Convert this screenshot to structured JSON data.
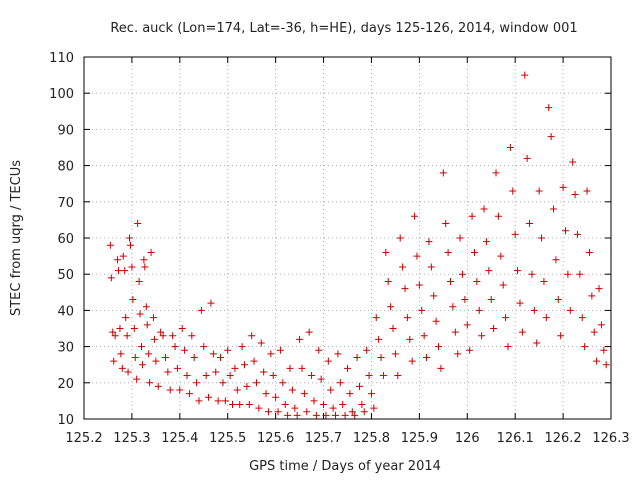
{
  "chart_data": {
    "type": "scatter",
    "title": "Rec. auck (Lon=174, Lat=-36, h=HE), days 125-126, 2014, window 001",
    "xlabel": "GPS time / Days of year 2014",
    "ylabel": "STEC from uqrg / TECUs",
    "xlim": [
      125.2,
      126.3
    ],
    "ylim": [
      10,
      110
    ],
    "xticks": [
      "125.2",
      "125.3",
      "125.4",
      "125.5",
      "125.6",
      "125.7",
      "125.8",
      "125.9",
      "126",
      "126.1",
      "126.2",
      "126.3"
    ],
    "yticks": [
      "10",
      "20",
      "30",
      "40",
      "50",
      "60",
      "70",
      "80",
      "90",
      "100",
      "110"
    ],
    "grid": true,
    "legend": "none",
    "marker": "+",
    "color": "#cc0000",
    "points": [
      [
        125.255,
        58
      ],
      [
        125.257,
        49
      ],
      [
        125.26,
        34
      ],
      [
        125.262,
        26
      ],
      [
        125.265,
        33
      ],
      [
        125.27,
        54
      ],
      [
        125.272,
        51
      ],
      [
        125.275,
        35
      ],
      [
        125.277,
        28
      ],
      [
        125.28,
        24
      ],
      [
        125.282,
        55
      ],
      [
        125.285,
        51
      ],
      [
        125.287,
        38
      ],
      [
        125.29,
        33
      ],
      [
        125.292,
        23
      ],
      [
        125.295,
        60
      ],
      [
        125.297,
        58
      ],
      [
        125.3,
        52
      ],
      [
        125.302,
        43
      ],
      [
        125.305,
        35
      ],
      [
        125.307,
        27
      ],
      [
        125.31,
        21
      ],
      [
        125.312,
        64
      ],
      [
        125.315,
        48
      ],
      [
        125.317,
        39
      ],
      [
        125.32,
        30
      ],
      [
        125.322,
        25
      ],
      [
        125.325,
        54
      ],
      [
        125.327,
        52
      ],
      [
        125.33,
        41
      ],
      [
        125.332,
        36
      ],
      [
        125.335,
        28
      ],
      [
        125.337,
        20
      ],
      [
        125.34,
        56
      ],
      [
        125.345,
        38
      ],
      [
        125.347,
        32
      ],
      [
        125.35,
        26
      ],
      [
        125.355,
        19
      ],
      [
        125.36,
        34
      ],
      [
        125.365,
        33
      ],
      [
        125.37,
        27
      ],
      [
        125.375,
        23
      ],
      [
        125.38,
        18
      ],
      [
        125.385,
        33
      ],
      [
        125.39,
        30
      ],
      [
        125.395,
        24
      ],
      [
        125.4,
        18
      ],
      [
        125.405,
        35
      ],
      [
        125.41,
        29
      ],
      [
        125.415,
        22
      ],
      [
        125.42,
        17
      ],
      [
        125.425,
        33
      ],
      [
        125.43,
        27
      ],
      [
        125.435,
        20
      ],
      [
        125.44,
        15
      ],
      [
        125.445,
        40
      ],
      [
        125.45,
        30
      ],
      [
        125.455,
        22
      ],
      [
        125.46,
        16
      ],
      [
        125.465,
        42
      ],
      [
        125.47,
        28
      ],
      [
        125.475,
        23
      ],
      [
        125.48,
        15
      ],
      [
        125.485,
        27
      ],
      [
        125.49,
        20
      ],
      [
        125.495,
        15
      ],
      [
        125.5,
        29
      ],
      [
        125.505,
        22
      ],
      [
        125.51,
        14
      ],
      [
        125.515,
        24
      ],
      [
        125.52,
        18
      ],
      [
        125.525,
        14
      ],
      [
        125.53,
        30
      ],
      [
        125.535,
        25
      ],
      [
        125.54,
        19
      ],
      [
        125.545,
        14
      ],
      [
        125.55,
        33
      ],
      [
        125.555,
        26
      ],
      [
        125.56,
        20
      ],
      [
        125.565,
        13
      ],
      [
        125.57,
        31
      ],
      [
        125.575,
        23
      ],
      [
        125.58,
        17
      ],
      [
        125.585,
        12
      ],
      [
        125.59,
        28
      ],
      [
        125.595,
        22
      ],
      [
        125.6,
        16
      ],
      [
        125.605,
        12
      ],
      [
        125.61,
        29
      ],
      [
        125.615,
        20
      ],
      [
        125.62,
        14
      ],
      [
        125.625,
        11
      ],
      [
        125.63,
        24
      ],
      [
        125.635,
        18
      ],
      [
        125.64,
        13
      ],
      [
        125.645,
        11
      ],
      [
        125.65,
        32
      ],
      [
        125.655,
        24
      ],
      [
        125.66,
        17
      ],
      [
        125.665,
        12
      ],
      [
        125.67,
        34
      ],
      [
        125.675,
        22
      ],
      [
        125.68,
        15
      ],
      [
        125.685,
        11
      ],
      [
        125.69,
        29
      ],
      [
        125.695,
        21
      ],
      [
        125.7,
        14
      ],
      [
        125.705,
        11
      ],
      [
        125.71,
        26
      ],
      [
        125.715,
        18
      ],
      [
        125.72,
        13
      ],
      [
        125.725,
        11
      ],
      [
        125.73,
        28
      ],
      [
        125.735,
        20
      ],
      [
        125.74,
        14
      ],
      [
        125.745,
        11
      ],
      [
        125.75,
        24
      ],
      [
        125.755,
        17
      ],
      [
        125.76,
        12
      ],
      [
        125.765,
        11
      ],
      [
        125.77,
        27
      ],
      [
        125.775,
        19
      ],
      [
        125.78,
        14
      ],
      [
        125.785,
        12
      ],
      [
        125.79,
        29
      ],
      [
        125.795,
        22
      ],
      [
        125.8,
        17
      ],
      [
        125.805,
        13
      ],
      [
        125.81,
        38
      ],
      [
        125.815,
        32
      ],
      [
        125.82,
        27
      ],
      [
        125.825,
        22
      ],
      [
        125.83,
        56
      ],
      [
        125.835,
        48
      ],
      [
        125.84,
        41
      ],
      [
        125.845,
        35
      ],
      [
        125.85,
        28
      ],
      [
        125.855,
        22
      ],
      [
        125.86,
        60
      ],
      [
        125.865,
        52
      ],
      [
        125.87,
        46
      ],
      [
        125.875,
        38
      ],
      [
        125.88,
        32
      ],
      [
        125.885,
        26
      ],
      [
        125.89,
        66
      ],
      [
        125.895,
        55
      ],
      [
        125.9,
        47
      ],
      [
        125.905,
        40
      ],
      [
        125.91,
        33
      ],
      [
        125.915,
        27
      ],
      [
        125.92,
        59
      ],
      [
        125.925,
        52
      ],
      [
        125.93,
        44
      ],
      [
        125.935,
        37
      ],
      [
        125.94,
        30
      ],
      [
        125.945,
        24
      ],
      [
        125.95,
        78
      ],
      [
        125.955,
        64
      ],
      [
        125.96,
        56
      ],
      [
        125.965,
        48
      ],
      [
        125.97,
        41
      ],
      [
        125.975,
        34
      ],
      [
        125.98,
        28
      ],
      [
        125.985,
        60
      ],
      [
        125.99,
        50
      ],
      [
        125.995,
        43
      ],
      [
        126.0,
        36
      ],
      [
        126.005,
        29
      ],
      [
        126.01,
        66
      ],
      [
        126.015,
        56
      ],
      [
        126.02,
        48
      ],
      [
        126.025,
        40
      ],
      [
        126.03,
        33
      ],
      [
        126.035,
        68
      ],
      [
        126.04,
        59
      ],
      [
        126.045,
        51
      ],
      [
        126.05,
        43
      ],
      [
        126.055,
        35
      ],
      [
        126.06,
        78
      ],
      [
        126.065,
        66
      ],
      [
        126.07,
        55
      ],
      [
        126.075,
        47
      ],
      [
        126.08,
        38
      ],
      [
        126.085,
        30
      ],
      [
        126.09,
        85
      ],
      [
        126.095,
        73
      ],
      [
        126.1,
        61
      ],
      [
        126.105,
        51
      ],
      [
        126.11,
        42
      ],
      [
        126.115,
        34
      ],
      [
        126.12,
        105
      ],
      [
        126.125,
        82
      ],
      [
        126.13,
        64
      ],
      [
        126.135,
        50
      ],
      [
        126.14,
        40
      ],
      [
        126.145,
        31
      ],
      [
        126.15,
        73
      ],
      [
        126.155,
        60
      ],
      [
        126.16,
        48
      ],
      [
        126.165,
        38
      ],
      [
        126.17,
        96
      ],
      [
        126.175,
        88
      ],
      [
        126.18,
        68
      ],
      [
        126.185,
        54
      ],
      [
        126.19,
        43
      ],
      [
        126.195,
        33
      ],
      [
        126.2,
        74
      ],
      [
        126.205,
        62
      ],
      [
        126.21,
        50
      ],
      [
        126.215,
        40
      ],
      [
        126.22,
        81
      ],
      [
        126.225,
        72
      ],
      [
        126.23,
        61
      ],
      [
        126.235,
        50
      ],
      [
        126.24,
        38
      ],
      [
        126.245,
        30
      ],
      [
        126.25,
        73
      ],
      [
        126.255,
        56
      ],
      [
        126.26,
        44
      ],
      [
        126.265,
        34
      ],
      [
        126.27,
        26
      ],
      [
        126.275,
        46
      ],
      [
        126.28,
        36
      ],
      [
        126.285,
        29
      ],
      [
        126.29,
        25
      ]
    ]
  }
}
